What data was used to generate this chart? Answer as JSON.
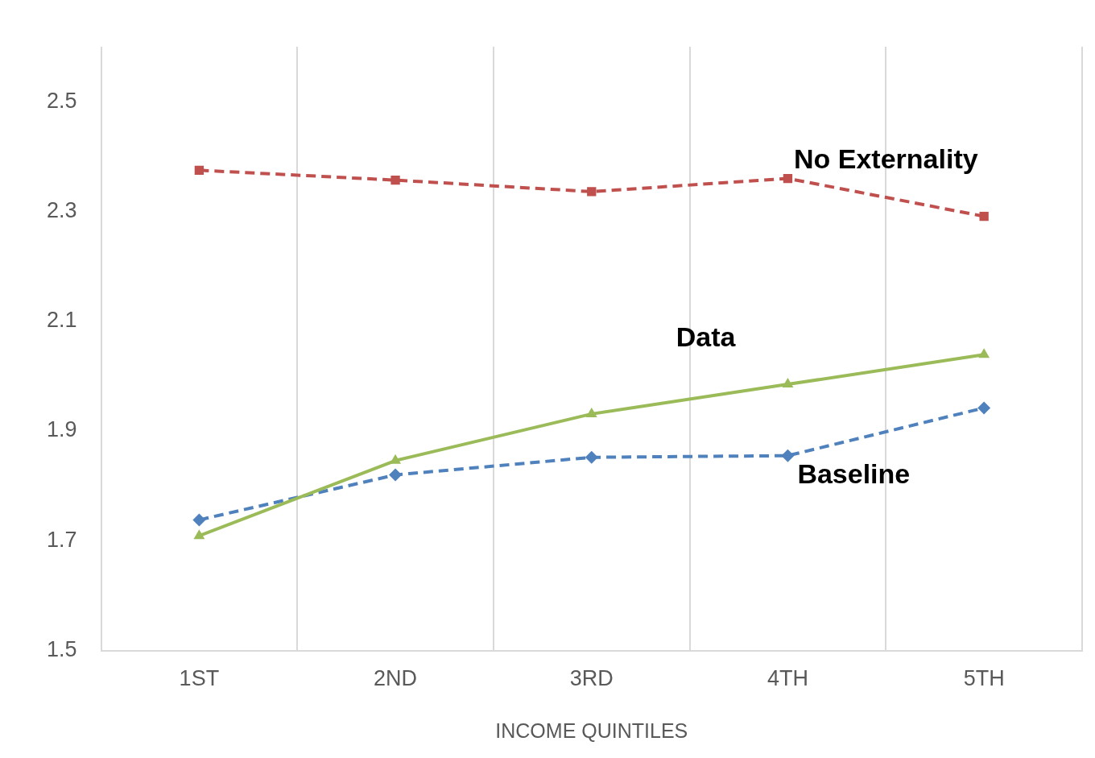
{
  "chart_data": {
    "type": "line",
    "xlabel": "INCOME QUINTILES",
    "categories": [
      "1ST",
      "2ND",
      "3RD",
      "4TH",
      "5TH"
    ],
    "series": [
      {
        "name": "No Externality",
        "color": "#c0504d",
        "marker": "square",
        "line_style": "dashed",
        "values": [
          2.375,
          2.357,
          2.336,
          2.36,
          2.291
        ]
      },
      {
        "name": "Data",
        "color": "#9bbb59",
        "marker": "triangle",
        "line_style": "solid",
        "values": [
          1.709,
          1.846,
          1.931,
          1.985,
          2.039
        ]
      },
      {
        "name": "Baseline",
        "color": "#4f81bd",
        "marker": "diamond",
        "line_style": "dashed",
        "values": [
          1.738,
          1.82,
          1.852,
          1.855,
          1.942
        ]
      }
    ],
    "ylim": [
      1.5,
      2.6
    ],
    "yticks": [
      1.5,
      1.7,
      1.9,
      2.1,
      2.3,
      2.5
    ],
    "grid": "x",
    "legend": false
  }
}
